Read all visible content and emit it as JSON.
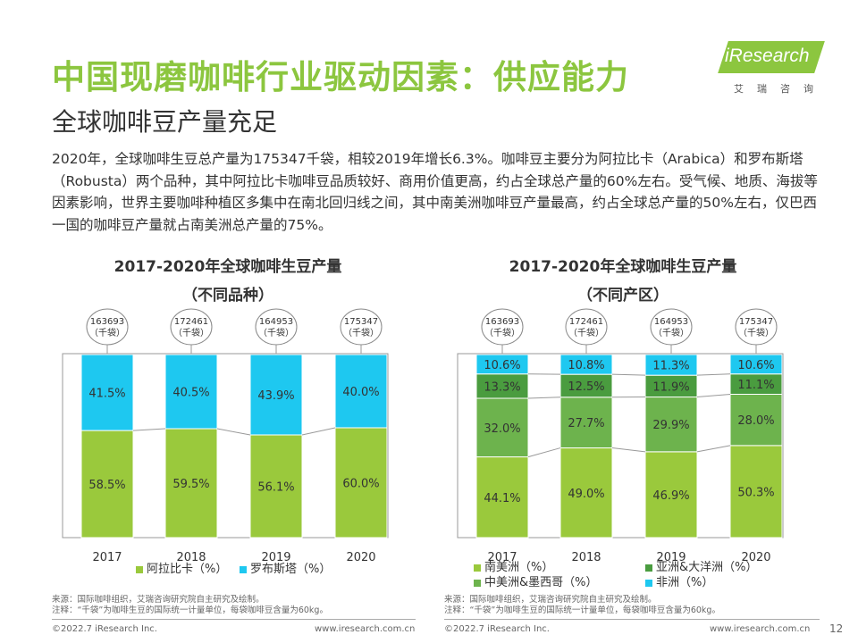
{
  "page": {
    "title": "中国现磨咖啡行业驱动因素：供应能力",
    "subtitle": "全球咖啡豆产量充足",
    "intro": "2020年，全球咖啡生豆总产量为175347千袋，相较2019年增长6.3%。咖啡豆主要分为阿拉比卡（Arabica）和罗布斯塔（Robusta）两个品种，其中阿拉比卡咖啡豆品质较好、商用价值更高，约占全球总产量的60%左右。受气候、地质、海拔等因素影响，世界主要咖啡种植区多集中在南北回归线之间，其中南美洲咖啡豆产量最高，约占全球总产量的50%左右，仅巴西一国的咖啡豆产量就占南美洲总产量的75%。",
    "page_number": "12"
  },
  "logo": {
    "text": "iResearch",
    "cn": "艾瑞咨询"
  },
  "chart_data": [
    {
      "type": "bar",
      "stacked": true,
      "percent": true,
      "title": "2017-2020年全球咖啡生豆产量",
      "subtitle": "（不同品种）",
      "categories": [
        "2017",
        "2018",
        "2019",
        "2020"
      ],
      "totals": [
        "163693\n（千袋）",
        "172461\n（千袋）",
        "164953\n（千袋）",
        "175347\n（千袋）"
      ],
      "series": [
        {
          "name": "阿拉比卡（%）",
          "color": "#9ac93c",
          "values": [
            58.5,
            59.5,
            56.1,
            60.0
          ],
          "labels": [
            "58.5%",
            "59.5%",
            "56.1%",
            "60.0%"
          ]
        },
        {
          "name": "罗布斯塔（%）",
          "color": "#1ec8f0",
          "values": [
            41.5,
            40.5,
            43.9,
            40.0
          ],
          "labels": [
            "41.5%",
            "40.5%",
            "43.9%",
            "40.0%"
          ]
        }
      ],
      "legend_position": "bottom",
      "grid": false
    },
    {
      "type": "bar",
      "stacked": true,
      "percent": true,
      "title": "2017-2020年全球咖啡生豆产量",
      "subtitle": "（不同产区）",
      "categories": [
        "2017",
        "2018",
        "2019",
        "2020"
      ],
      "totals": [
        "163693\n（千袋）",
        "172461\n（千袋）",
        "164953\n（千袋）",
        "175347\n（千袋）"
      ],
      "series": [
        {
          "name": "南美洲（%）",
          "color": "#9ac93c",
          "values": [
            44.1,
            49.0,
            46.9,
            50.3
          ],
          "labels": [
            "44.1%",
            "49.0%",
            "46.9%",
            "50.3%"
          ]
        },
        {
          "name": "中美洲&墨西哥（%）",
          "color": "#6db34d",
          "values": [
            32.0,
            27.7,
            29.9,
            28.0
          ],
          "labels": [
            "32.0%",
            "27.7%",
            "29.9%",
            "28.0%"
          ]
        },
        {
          "name": "亚洲&大洋洲（%）",
          "color": "#4a9c3f",
          "values": [
            13.3,
            12.5,
            11.9,
            11.1
          ],
          "labels": [
            "13.3%",
            "12.5%",
            "11.9%",
            "11.1%"
          ]
        },
        {
          "name": "非洲（%）",
          "color": "#1ec8f0",
          "values": [
            10.6,
            10.8,
            11.3,
            10.6
          ],
          "labels": [
            "10.6%",
            "10.8%",
            "11.3%",
            "10.6%"
          ]
        }
      ],
      "legend_position": "bottom",
      "grid": false
    }
  ],
  "notes": {
    "source": "来源：国际咖啡组织，艾瑞咨询研究院自主研究及绘制。",
    "note": "注释：“千袋”为咖啡生豆的国际统一计量单位，每袋咖啡豆含量为60kg。"
  },
  "footer": {
    "copyright": "©2022.7 iResearch Inc.",
    "url": "www.iresearch.com.cn"
  }
}
